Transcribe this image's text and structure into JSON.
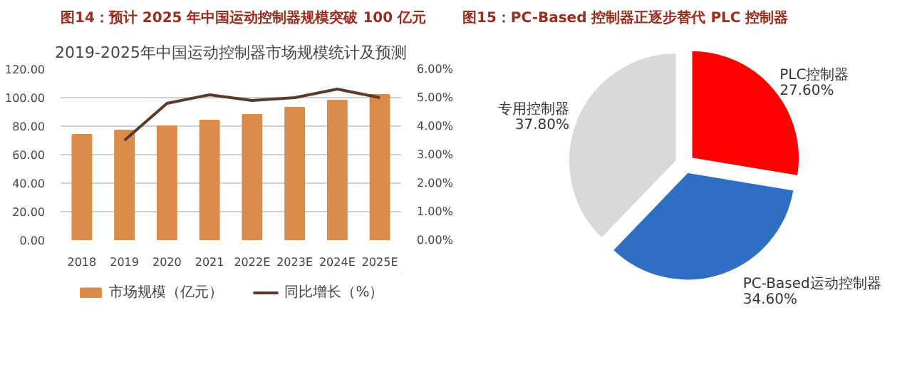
{
  "chart_data": [
    {
      "type": "bar",
      "title": "图14：预计 2025 年中国运动控制器规模突破 100 亿元",
      "subtitle": "2019-2025年中国运动控制器市场规模统计及预测",
      "categories": [
        "2018",
        "2019",
        "2020",
        "2021",
        "2022E",
        "2023E",
        "2024E",
        "2025E"
      ],
      "series": [
        {
          "name": "市场规模（亿元）",
          "color": "#d98c4a",
          "values": [
            74,
            77,
            80,
            84,
            88,
            93,
            98,
            102
          ]
        },
        {
          "name": "同比增长（%）",
          "type": "line",
          "axis": "y2",
          "color": "#5a3a2a",
          "values": [
            null,
            3.5,
            4.8,
            5.1,
            4.9,
            5.0,
            5.3,
            5.0
          ]
        }
      ],
      "ylim": [
        0,
        120
      ],
      "yticks": [
        {
          "value": 0,
          "label": "0.00"
        },
        {
          "value": 20,
          "label": "20.00"
        },
        {
          "value": 40,
          "label": "40.00"
        },
        {
          "value": 60,
          "label": "60.00"
        },
        {
          "value": 80,
          "label": "80.00"
        },
        {
          "value": 100,
          "label": "100.00"
        },
        {
          "value": 120,
          "label": "120.00"
        }
      ],
      "y2lim": [
        0,
        6
      ],
      "y2ticks": [
        {
          "value": 0,
          "label": "0.00%"
        },
        {
          "value": 1,
          "label": "1.00%"
        },
        {
          "value": 2,
          "label": "2.00%"
        },
        {
          "value": 3,
          "label": "3.00%"
        },
        {
          "value": 4,
          "label": "4.00%"
        },
        {
          "value": 5,
          "label": "5.00%"
        },
        {
          "value": 6,
          "label": "6.00%"
        }
      ],
      "grid": "y",
      "legend": "bottom"
    },
    {
      "type": "pie",
      "title": "图15：PC-Based 控制器正逐步替代 PLC 控制器",
      "categories": [
        "PLC控制器",
        "PC-Based运动控制器",
        "专用控制器"
      ],
      "values": [
        27.6,
        34.6,
        37.8
      ],
      "value_labels": [
        "27.60%",
        "34.60%",
        "37.80%"
      ],
      "colors": [
        "#ff0000",
        "#2e6fc4",
        "#d9d9d9"
      ],
      "data_labels": true,
      "legend": false
    }
  ]
}
